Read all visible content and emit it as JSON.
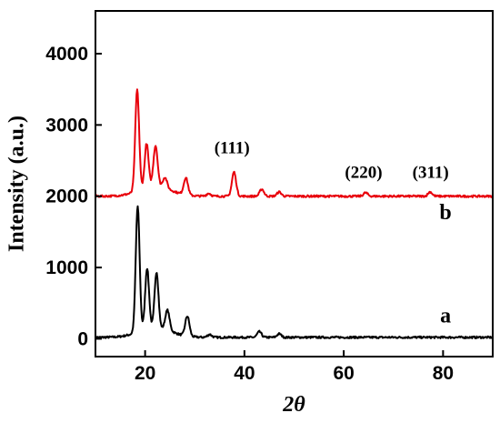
{
  "chart_data": {
    "type": "line",
    "xlabel": "2θ",
    "ylabel": "Intensity (a.u.)",
    "xlim": [
      10,
      90
    ],
    "ylim": [
      -250,
      4600
    ],
    "x_ticks": [
      20,
      40,
      60,
      80
    ],
    "x_tick_labels": [
      "20",
      "40",
      "60",
      "80"
    ],
    "y_ticks": [
      0,
      1000,
      2000,
      3000,
      4000
    ],
    "y_tick_labels": [
      "0",
      "1000",
      "2000",
      "3000",
      "4000"
    ],
    "grid": false,
    "series": [
      {
        "name": "a",
        "color": "#000000",
        "baseline": 20,
        "peaks": [
          {
            "x": 18.5,
            "y": 1780
          },
          {
            "x": 20.4,
            "y": 870
          },
          {
            "x": 22.3,
            "y": 800
          },
          {
            "x": 24.5,
            "y": 300
          },
          {
            "x": 28.5,
            "y": 300
          },
          {
            "x": 33.0,
            "y": 60
          },
          {
            "x": 43.0,
            "y": 100
          },
          {
            "x": 47.0,
            "y": 70
          }
        ]
      },
      {
        "name": "b",
        "color": "#e8000b",
        "baseline": 2000,
        "peaks": [
          {
            "x": 18.4,
            "y": 3420
          },
          {
            "x": 20.3,
            "y": 2620
          },
          {
            "x": 22.1,
            "y": 2570
          },
          {
            "x": 24.0,
            "y": 2150
          },
          {
            "x": 28.2,
            "y": 2240
          },
          {
            "x": 32.8,
            "y": 2040
          },
          {
            "x": 37.9,
            "y": 2340
          },
          {
            "x": 43.5,
            "y": 2100
          },
          {
            "x": 47.0,
            "y": 2060
          },
          {
            "x": 64.4,
            "y": 2050
          },
          {
            "x": 77.4,
            "y": 2060
          }
        ]
      }
    ],
    "annotations": [
      {
        "text": "(111)",
        "x": 37.5,
        "y": 2600
      },
      {
        "text": "(220)",
        "x": 64.0,
        "y": 2260
      },
      {
        "text": "(311)",
        "x": 77.5,
        "y": 2260
      }
    ],
    "series_labels": [
      {
        "text": "b",
        "x": 80.5,
        "y": 1680
      },
      {
        "text": "a",
        "x": 80.5,
        "y": 230
      }
    ]
  }
}
